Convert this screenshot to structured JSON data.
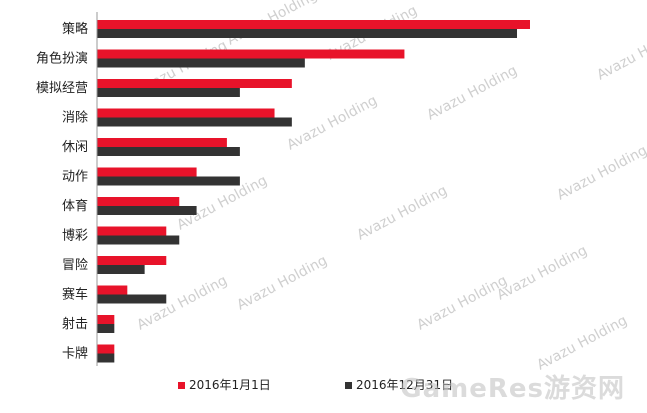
{
  "chart_data": {
    "type": "bar",
    "orientation": "horizontal",
    "categories": [
      "策略",
      "角色扮演",
      "模拟经营",
      "消除",
      "休闲",
      "动作",
      "体育",
      "博彩",
      "冒险",
      "赛车",
      "射击",
      "卡牌"
    ],
    "series": [
      {
        "name": "2016年1月1日",
        "color": "#e8132a",
        "values": [
          100,
          71,
          45,
          41,
          30,
          23,
          19,
          16,
          16,
          7,
          4,
          4
        ]
      },
      {
        "name": "2016年12月31日",
        "color": "#333333",
        "values": [
          97,
          48,
          33,
          45,
          33,
          33,
          23,
          19,
          11,
          16,
          4,
          4
        ]
      }
    ],
    "title": "",
    "xlabel": "",
    "ylabel": "",
    "xlim": [
      0,
      100
    ],
    "grid": false,
    "legend_position": "bottom"
  },
  "watermark": {
    "text": "Avazu Holding",
    "brand": "GameRes游资网"
  }
}
